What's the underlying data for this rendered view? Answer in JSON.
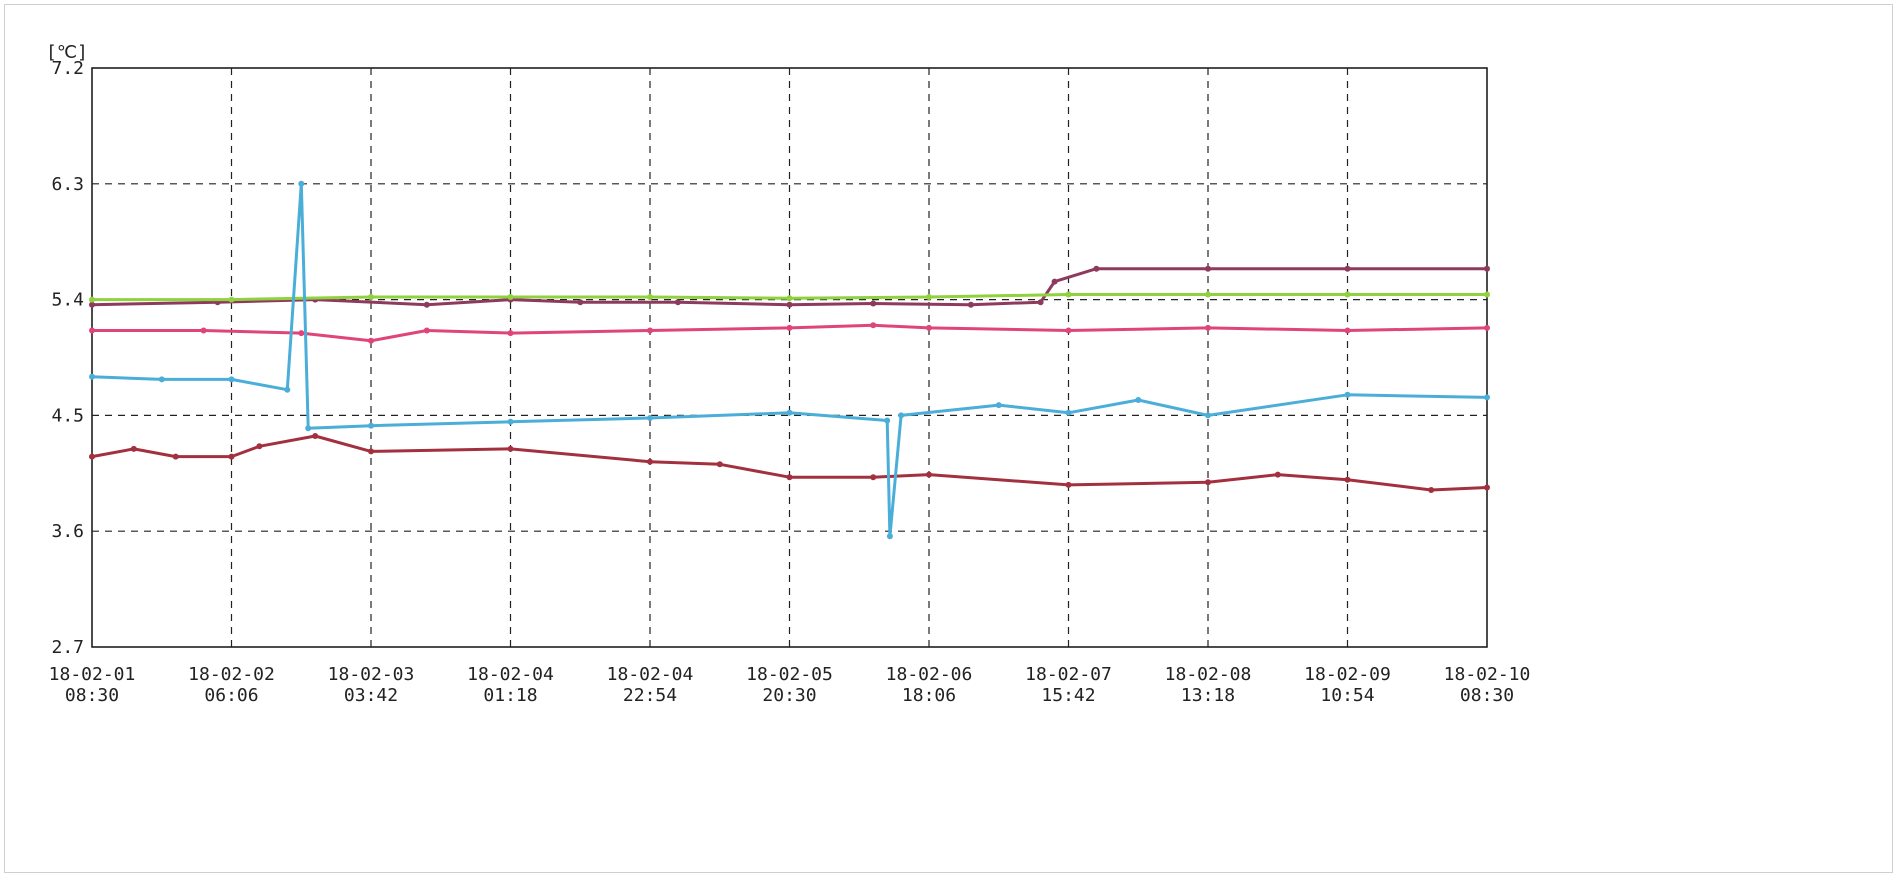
{
  "chart_data": {
    "type": "line",
    "ylabel": "[℃]",
    "ylim": [
      2.7,
      7.2
    ],
    "yticks": [
      "7.2",
      "6.3",
      "5.4",
      "4.5",
      "3.6",
      "2.7"
    ],
    "xticks": [
      {
        "date": "18-02-01",
        "time": "08:30"
      },
      {
        "date": "18-02-02",
        "time": "06:06"
      },
      {
        "date": "18-02-03",
        "time": "03:42"
      },
      {
        "date": "18-02-04",
        "time": "01:18"
      },
      {
        "date": "18-02-04",
        "time": "22:54"
      },
      {
        "date": "18-02-05",
        "time": "20:30"
      },
      {
        "date": "18-02-06",
        "time": "18:06"
      },
      {
        "date": "18-02-07",
        "time": "15:42"
      },
      {
        "date": "18-02-08",
        "time": "13:18"
      },
      {
        "date": "18-02-09",
        "time": "10:54"
      },
      {
        "date": "18-02-10",
        "time": "08:30"
      }
    ],
    "grid": true,
    "series": [
      {
        "color": "#8e3a5e",
        "points": [
          [
            0,
            5.36
          ],
          [
            0.9,
            5.38
          ],
          [
            1.6,
            5.4
          ],
          [
            2.4,
            5.36
          ],
          [
            3.0,
            5.4
          ],
          [
            3.5,
            5.38
          ],
          [
            4.2,
            5.38
          ],
          [
            5.0,
            5.36
          ],
          [
            5.6,
            5.37
          ],
          [
            6.3,
            5.36
          ],
          [
            6.8,
            5.38
          ],
          [
            6.9,
            5.54
          ],
          [
            7.2,
            5.64
          ],
          [
            8.0,
            5.64
          ],
          [
            9.0,
            5.64
          ],
          [
            10.0,
            5.64
          ]
        ]
      },
      {
        "color": "#8fd13f",
        "points": [
          [
            0,
            5.4
          ],
          [
            1,
            5.4
          ],
          [
            2,
            5.42
          ],
          [
            3,
            5.42
          ],
          [
            4,
            5.42
          ],
          [
            5,
            5.41
          ],
          [
            6,
            5.42
          ],
          [
            7,
            5.44
          ],
          [
            8,
            5.44
          ],
          [
            9,
            5.44
          ],
          [
            10,
            5.44
          ]
        ]
      },
      {
        "color": "#e0457a",
        "points": [
          [
            0,
            5.16
          ],
          [
            0.8,
            5.16
          ],
          [
            1.5,
            5.14
          ],
          [
            2.0,
            5.08
          ],
          [
            2.4,
            5.16
          ],
          [
            3.0,
            5.14
          ],
          [
            4.0,
            5.16
          ],
          [
            5.0,
            5.18
          ],
          [
            5.6,
            5.2
          ],
          [
            6.0,
            5.18
          ],
          [
            7.0,
            5.16
          ],
          [
            8.0,
            5.18
          ],
          [
            9.0,
            5.16
          ],
          [
            10.0,
            5.18
          ]
        ]
      },
      {
        "color": "#a3303f",
        "points": [
          [
            0,
            4.18
          ],
          [
            0.3,
            4.24
          ],
          [
            0.6,
            4.18
          ],
          [
            1.0,
            4.18
          ],
          [
            1.2,
            4.26
          ],
          [
            1.6,
            4.34
          ],
          [
            2.0,
            4.22
          ],
          [
            3.0,
            4.24
          ],
          [
            4.0,
            4.14
          ],
          [
            4.5,
            4.12
          ],
          [
            5.0,
            4.02
          ],
          [
            5.6,
            4.02
          ],
          [
            6.0,
            4.04
          ],
          [
            7.0,
            3.96
          ],
          [
            8.0,
            3.98
          ],
          [
            8.5,
            4.04
          ],
          [
            9.0,
            4.0
          ],
          [
            9.6,
            3.92
          ],
          [
            10.0,
            3.94
          ]
        ]
      },
      {
        "color": "#4aaed8",
        "points": [
          [
            0,
            4.8
          ],
          [
            0.5,
            4.78
          ],
          [
            1.0,
            4.78
          ],
          [
            1.4,
            4.7
          ],
          [
            1.5,
            6.3
          ],
          [
            1.55,
            4.4
          ],
          [
            2.0,
            4.42
          ],
          [
            3.0,
            4.45
          ],
          [
            4.0,
            4.48
          ],
          [
            5.0,
            4.52
          ],
          [
            5.7,
            4.46
          ],
          [
            5.72,
            3.56
          ],
          [
            5.8,
            4.5
          ],
          [
            6.5,
            4.58
          ],
          [
            7.0,
            4.52
          ],
          [
            7.5,
            4.62
          ],
          [
            8.0,
            4.5
          ],
          [
            9.0,
            4.66
          ],
          [
            10.0,
            4.64
          ]
        ]
      }
    ]
  }
}
